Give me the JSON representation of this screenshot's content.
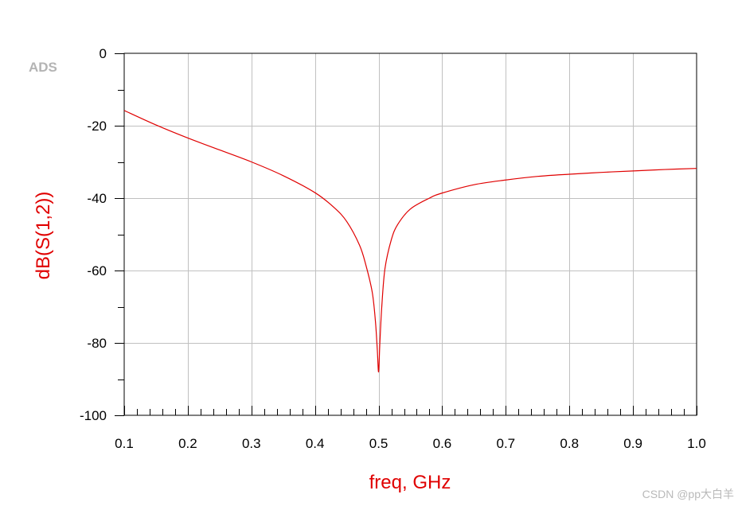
{
  "app": {
    "logo_text": "ADS",
    "watermark": "CSDN @pp大白羊"
  },
  "chart_data": {
    "type": "line",
    "title": "",
    "xlabel": "freq, GHz",
    "ylabel": "dB(S(1,2))",
    "xlim": [
      0.1,
      1.0
    ],
    "ylim": [
      -100,
      0
    ],
    "x_ticks": [
      0.1,
      0.2,
      0.3,
      0.4,
      0.5,
      0.6,
      0.7,
      0.8,
      0.9,
      1.0
    ],
    "x_tick_labels": [
      "0.1",
      "0.2",
      "0.3",
      "0.4",
      "0.5",
      "0.6",
      "0.7",
      "0.8",
      "0.9",
      "1.0"
    ],
    "y_ticks": [
      0,
      -20,
      -40,
      -60,
      -80,
      -100
    ],
    "y_tick_labels": [
      "0",
      "-20",
      "-40",
      "-60",
      "-80",
      "-100"
    ],
    "grid": true,
    "series": [
      {
        "color": "#e00000",
        "x": [
          0.1,
          0.15,
          0.2,
          0.25,
          0.3,
          0.35,
          0.4,
          0.43,
          0.45,
          0.47,
          0.48,
          0.49,
          0.495,
          0.498,
          0.5,
          0.502,
          0.505,
          0.51,
          0.52,
          0.53,
          0.55,
          0.58,
          0.6,
          0.65,
          0.7,
          0.75,
          0.8,
          0.85,
          0.9,
          0.95,
          1.0
        ],
        "y": [
          -15.8,
          -19.8,
          -23.4,
          -26.7,
          -30.0,
          -33.8,
          -38.5,
          -42.6,
          -46.5,
          -53.0,
          -58.5,
          -66.0,
          -74.0,
          -82.0,
          -88.0,
          -80.0,
          -70.0,
          -59.5,
          -51.5,
          -47.3,
          -43.0,
          -40.0,
          -38.6,
          -36.3,
          -35.0,
          -34.0,
          -33.4,
          -32.9,
          -32.5,
          -32.1,
          -31.8
        ]
      }
    ]
  }
}
